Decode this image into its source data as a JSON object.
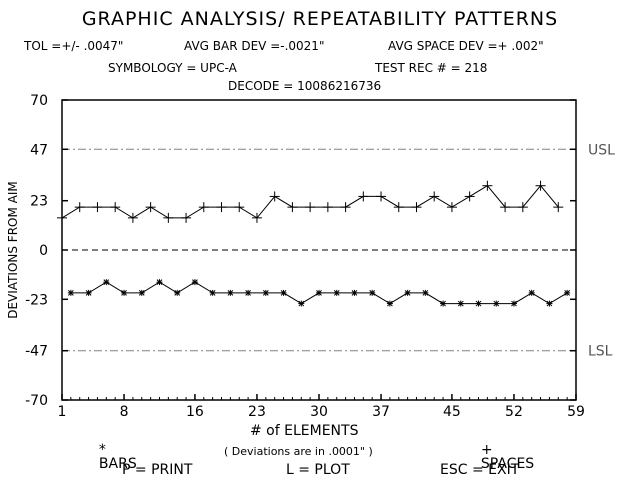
{
  "title": "GRAPHIC ANALYSIS/ REPEATABILITY PATTERNS",
  "header": {
    "tol": "TOL =+/- .0047\"",
    "avg_bar_dev": "AVG BAR DEV =-.0021\"",
    "avg_space_dev": "AVG SPACE DEV =+ .002\"",
    "symbology": "SYMBOLOGY = UPC-A",
    "test_rec": "TEST REC # = 218",
    "decode": "DECODE = 10086216736"
  },
  "footer": {
    "print": "P = PRINT",
    "plot": "L = PLOT",
    "exit": "ESC = EXIT"
  },
  "colors": {
    "axis": "#000000",
    "grid": "#808080",
    "series": "#000000"
  },
  "chart_data": {
    "type": "line",
    "xlabel": "# of ELEMENTS",
    "xlabel_note": "( Deviations are in .0001\" )",
    "ylabel": "DEVIATIONS FROM AIM",
    "xlim": [
      1,
      59
    ],
    "ylim": [
      -70,
      70
    ],
    "x_ticks": [
      1,
      8,
      16,
      23,
      30,
      37,
      45,
      52,
      59
    ],
    "y_ticks": [
      70,
      47,
      23,
      0,
      -23,
      -47,
      -70
    ],
    "reference_lines": [
      {
        "label": "USL",
        "y": 47,
        "style": "dashdot"
      },
      {
        "label": "",
        "y": 0,
        "style": "dashed"
      },
      {
        "label": "LSL",
        "y": -47,
        "style": "dashdot"
      }
    ],
    "series": [
      {
        "name": "SPACES",
        "marker": "+",
        "x": [
          1,
          3,
          5,
          7,
          9,
          11,
          13,
          15,
          17,
          19,
          21,
          23,
          25,
          27,
          29,
          31,
          33,
          35,
          37,
          39,
          41,
          43,
          45,
          47,
          49,
          51,
          53,
          55,
          57
        ],
        "values": [
          15,
          20,
          20,
          20,
          15,
          20,
          15,
          15,
          20,
          20,
          20,
          15,
          25,
          20,
          20,
          20,
          20,
          25,
          25,
          20,
          20,
          25,
          20,
          25,
          30,
          20,
          20,
          30,
          20
        ]
      },
      {
        "name": "BARS",
        "marker": "*",
        "x": [
          2,
          4,
          6,
          8,
          10,
          12,
          14,
          16,
          18,
          20,
          22,
          24,
          26,
          28,
          30,
          32,
          34,
          36,
          38,
          40,
          42,
          44,
          46,
          48,
          50,
          52,
          54,
          56,
          58
        ],
        "values": [
          -20,
          -20,
          -15,
          -20,
          -20,
          -15,
          -20,
          -15,
          -20,
          -20,
          -20,
          -20,
          -20,
          -25,
          -20,
          -20,
          -20,
          -20,
          -25,
          -20,
          -20,
          -25,
          -25,
          -25,
          -25,
          -25,
          -20,
          -25,
          -20
        ]
      }
    ]
  }
}
